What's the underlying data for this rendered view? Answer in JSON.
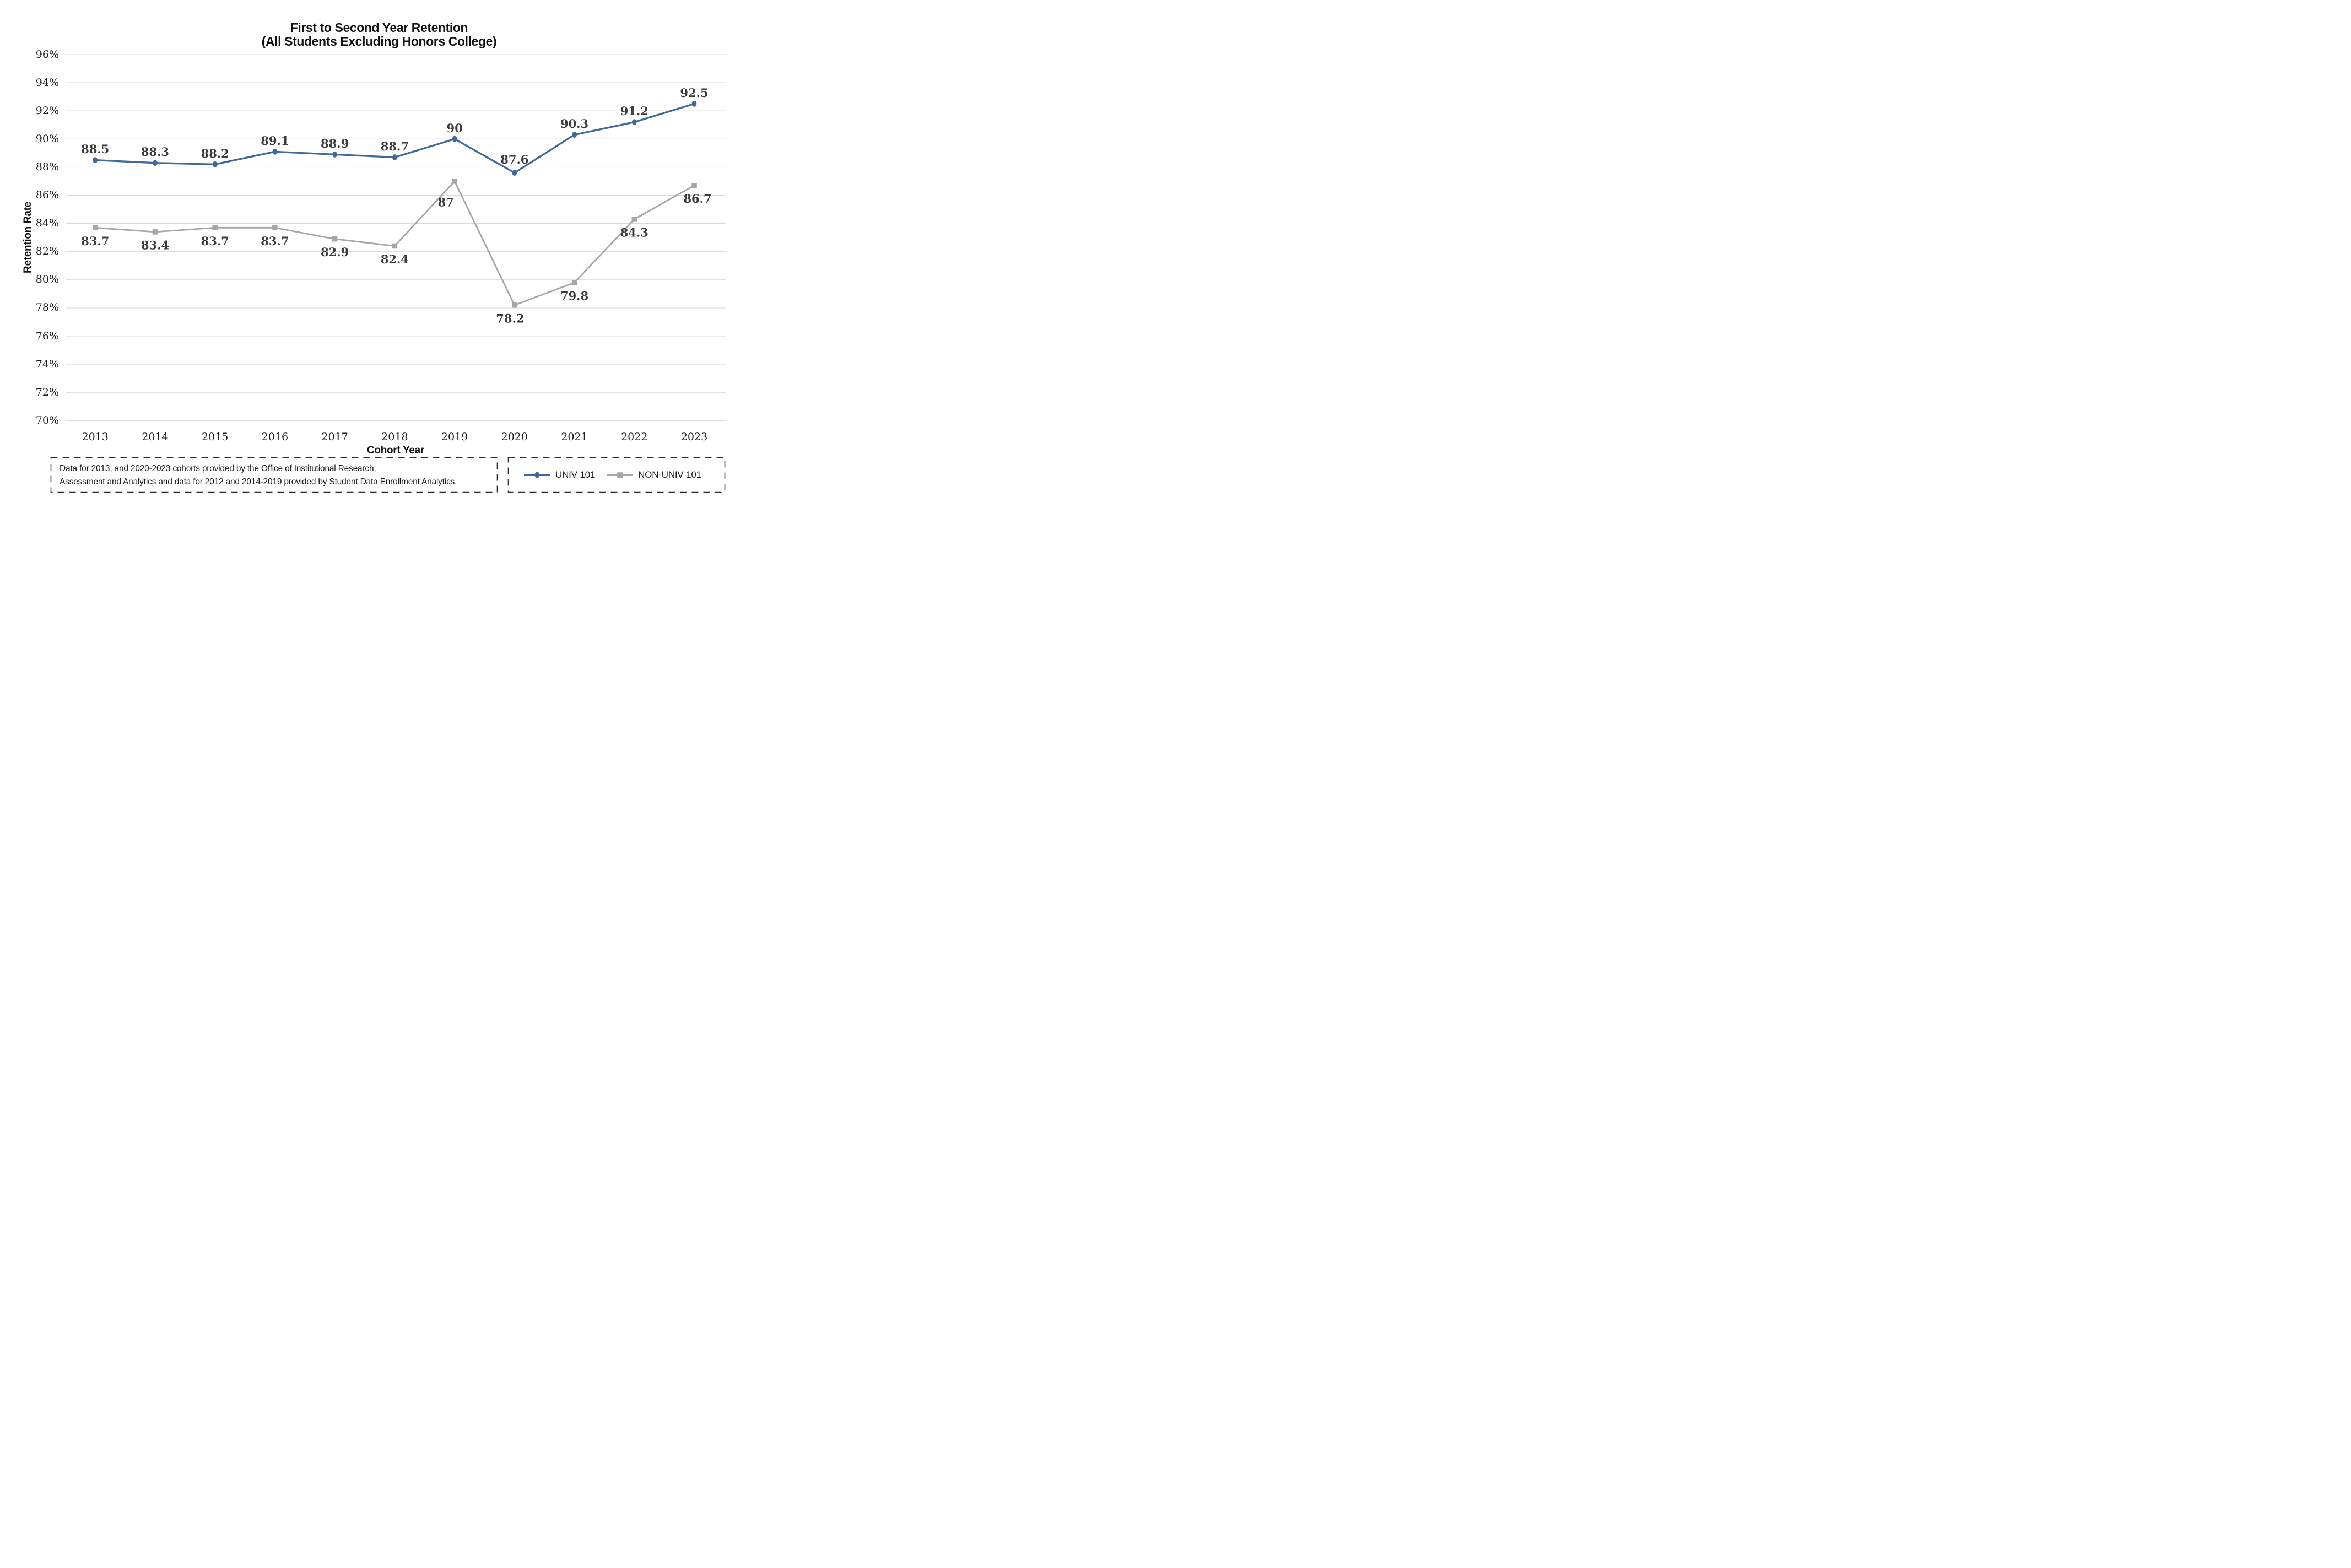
{
  "title": {
    "line1": "First to Second Year Retention",
    "line2": "(All Students Excluding Honors College)"
  },
  "axes": {
    "y_label": "Retention Rate",
    "x_label": "Cohort Year"
  },
  "note": {
    "line1": "Data for 2013, and 2020-2023 cohorts provided by the Office of Institutional Research,",
    "line2": "Assessment and Analytics and data for 2012 and 2014-2019 provided by Student Data Enrollment Analytics."
  },
  "legend": {
    "items": [
      {
        "label": "UNIV 101",
        "color": "#3D6A9B",
        "marker": "circle"
      },
      {
        "label": "NON-UNIV 101",
        "color": "#A6A6A6",
        "marker": "square"
      }
    ]
  },
  "colors": {
    "grid": "#D9D9D9",
    "data_label": "#3B3B3B",
    "axis_text": "#1B1B1B",
    "box_border": "#2B2B2B"
  },
  "chart_data": {
    "type": "line",
    "title": "First to Second Year Retention (All Students Excluding Honors College)",
    "xlabel": "Cohort Year",
    "ylabel": "Retention Rate",
    "categories": [
      "2013",
      "2014",
      "2015",
      "2016",
      "2017",
      "2018",
      "2019",
      "2020",
      "2021",
      "2022",
      "2023"
    ],
    "series": [
      {
        "name": "UNIV 101",
        "color": "#3D6A9B",
        "marker": "circle",
        "label_side": "above",
        "values": [
          88.5,
          88.3,
          88.2,
          89.1,
          88.9,
          88.7,
          90,
          87.6,
          90.3,
          91.2,
          92.5
        ]
      },
      {
        "name": "NON-UNIV 101",
        "color": "#A6A6A6",
        "marker": "square",
        "label_side": "below",
        "values": [
          83.7,
          83.4,
          83.7,
          83.7,
          82.9,
          82.4,
          87,
          78.2,
          79.8,
          84.3,
          86.7
        ]
      }
    ],
    "y_ticks": [
      "96%",
      "94%",
      "92%",
      "90%",
      "88%",
      "86%",
      "84%",
      "82%",
      "80%",
      "78%",
      "76%",
      "74%",
      "72%",
      "70%"
    ],
    "ylim": [
      70,
      96
    ],
    "grid": "horizontal",
    "legend_position": "bottom-right"
  }
}
